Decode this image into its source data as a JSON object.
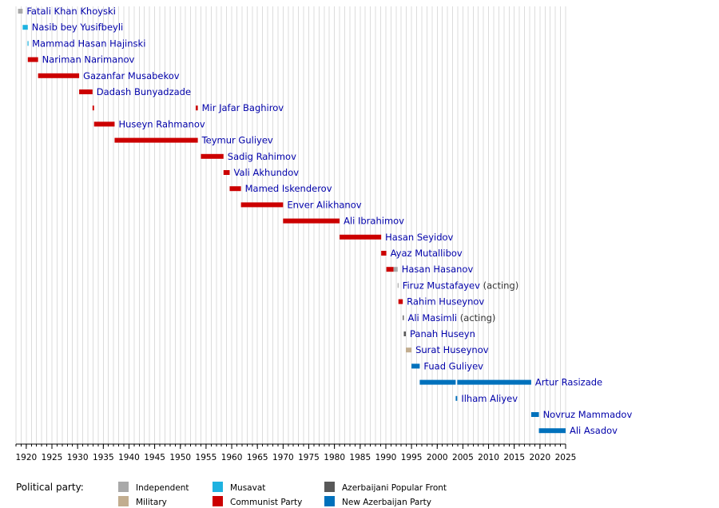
{
  "chart_data": {
    "type": "timeline",
    "title": "",
    "xlim": [
      1918,
      2025
    ],
    "x_ticks": [
      1920,
      1925,
      1930,
      1935,
      1940,
      1945,
      1950,
      1955,
      1960,
      1965,
      1970,
      1975,
      1980,
      1985,
      1990,
      1995,
      2000,
      2005,
      2010,
      2015,
      2020,
      2025
    ],
    "grid": "vertical lines every year",
    "party_colors": {
      "Independent": "#a9a9a9",
      "Musavat": "#1eb2e0",
      "Azerbaijani Popular Front": "#595959",
      "Military": "#c2ad8f",
      "Communist Party": "#cc0000",
      "New Azerbaijan Party": "#0071bc"
    },
    "rows": [
      {
        "name": "Fatali Khan Khoyski",
        "suffix": "",
        "terms": [
          {
            "start": 1918.4,
            "end": 1919.3,
            "party": "Independent"
          }
        ]
      },
      {
        "name": "Nasib bey Yusifbeyli",
        "suffix": "",
        "terms": [
          {
            "start": 1919.3,
            "end": 1920.3,
            "party": "Musavat"
          }
        ]
      },
      {
        "name": "Mammad Hasan Hajinski",
        "suffix": "",
        "terms": [
          {
            "start": 1920.25,
            "end": 1920.35,
            "party": "Musavat"
          }
        ]
      },
      {
        "name": "Nariman Narimanov",
        "suffix": "",
        "terms": [
          {
            "start": 1920.3,
            "end": 1922.3,
            "party": "Communist Party"
          }
        ]
      },
      {
        "name": "Gazanfar Musabekov",
        "suffix": "",
        "terms": [
          {
            "start": 1922.3,
            "end": 1930.3,
            "party": "Communist Party"
          }
        ]
      },
      {
        "name": "Dadash Bunyadzade",
        "suffix": "",
        "terms": [
          {
            "start": 1930.3,
            "end": 1932.9,
            "party": "Communist Party"
          }
        ]
      },
      {
        "name": "Mir Jafar Baghirov",
        "suffix": "",
        "terms": [
          {
            "start": 1932.9,
            "end": 1933.2,
            "party": "Communist Party"
          },
          {
            "start": 1953.0,
            "end": 1953.4,
            "party": "Communist Party"
          }
        ]
      },
      {
        "name": "Huseyn Rahmanov",
        "suffix": "",
        "terms": [
          {
            "start": 1933.2,
            "end": 1937.2,
            "party": "Communist Party"
          }
        ]
      },
      {
        "name": "Teymur Guliyev",
        "suffix": "",
        "terms": [
          {
            "start": 1937.2,
            "end": 1953.4,
            "party": "Communist Party"
          }
        ]
      },
      {
        "name": "Sadig Rahimov",
        "suffix": "",
        "terms": [
          {
            "start": 1954.0,
            "end": 1958.4,
            "party": "Communist Party"
          }
        ]
      },
      {
        "name": "Vali Akhundov",
        "suffix": "",
        "terms": [
          {
            "start": 1958.4,
            "end": 1959.6,
            "party": "Communist Party"
          }
        ]
      },
      {
        "name": "Mamed Iskenderov",
        "suffix": "",
        "terms": [
          {
            "start": 1959.6,
            "end": 1961.8,
            "party": "Communist Party"
          }
        ]
      },
      {
        "name": "Enver Alikhanov",
        "suffix": "",
        "terms": [
          {
            "start": 1961.8,
            "end": 1970.0,
            "party": "Communist Party"
          }
        ]
      },
      {
        "name": "Ali Ibrahimov",
        "suffix": "",
        "terms": [
          {
            "start": 1970.0,
            "end": 1981.0,
            "party": "Communist Party"
          }
        ]
      },
      {
        "name": "Hasan Seyidov",
        "suffix": "",
        "terms": [
          {
            "start": 1981.0,
            "end": 1989.1,
            "party": "Communist Party"
          }
        ]
      },
      {
        "name": "Ayaz Mutallibov",
        "suffix": "",
        "terms": [
          {
            "start": 1989.1,
            "end": 1990.1,
            "party": "Communist Party"
          }
        ]
      },
      {
        "name": "Hasan Hasanov",
        "suffix": "",
        "terms": [
          {
            "start": 1990.1,
            "end": 1991.5,
            "party": "Communist Party"
          },
          {
            "start": 1991.5,
            "end": 1992.3,
            "party": "Independent"
          }
        ]
      },
      {
        "name": "Firuz Mustafayev",
        "suffix": "(acting)",
        "terms": [
          {
            "start": 1992.3,
            "end": 1992.45,
            "party": "Independent"
          }
        ]
      },
      {
        "name": "Rahim Huseynov",
        "suffix": "",
        "terms": [
          {
            "start": 1992.45,
            "end": 1993.3,
            "party": "Communist Party"
          }
        ]
      },
      {
        "name": "Ali Masimli",
        "suffix": "(acting)",
        "terms": [
          {
            "start": 1993.3,
            "end": 1993.5,
            "party": "Azerbaijani Popular Front"
          }
        ]
      },
      {
        "name": "Panah Huseyn",
        "suffix": "",
        "terms": [
          {
            "start": 1993.5,
            "end": 1993.9,
            "party": "Azerbaijani Popular Front"
          }
        ]
      },
      {
        "name": "Surat Huseynov",
        "suffix": "",
        "terms": [
          {
            "start": 1993.9,
            "end": 1995.0,
            "party": "Military"
          }
        ]
      },
      {
        "name": "Fuad Guliyev",
        "suffix": "",
        "terms": [
          {
            "start": 1995.0,
            "end": 1996.6,
            "party": "New Azerbaijan Party"
          }
        ]
      },
      {
        "name": "Artur Rasizade",
        "suffix": "",
        "terms": [
          {
            "start": 1996.6,
            "end": 2003.6,
            "party": "New Azerbaijan Party"
          },
          {
            "start": 2003.9,
            "end": 2018.3,
            "party": "New Azerbaijan Party"
          }
        ]
      },
      {
        "name": "Ilham Aliyev",
        "suffix": "",
        "terms": [
          {
            "start": 2003.6,
            "end": 2003.9,
            "party": "New Azerbaijan Party"
          }
        ]
      },
      {
        "name": "Novruz Mammadov",
        "suffix": "",
        "terms": [
          {
            "start": 2018.3,
            "end": 2019.8,
            "party": "New Azerbaijan Party"
          }
        ]
      },
      {
        "name": "Ali Asadov",
        "suffix": "",
        "terms": [
          {
            "start": 2019.8,
            "end": 2025.0,
            "party": "New Azerbaijan Party"
          }
        ]
      }
    ]
  },
  "legend": {
    "title": "Political party:",
    "items": [
      {
        "label": "Independent",
        "color": "#a9a9a9"
      },
      {
        "label": "Military",
        "color": "#c2ad8f"
      },
      {
        "label": "Musavat",
        "color": "#1eb2e0"
      },
      {
        "label": "Communist Party",
        "color": "#cc0000"
      },
      {
        "label": "Azerbaijani Popular Front",
        "color": "#595959"
      },
      {
        "label": "New Azerbaijan Party",
        "color": "#0071bc"
      }
    ]
  },
  "colors": {
    "name_link": "#0000aa",
    "suffix_text": "#333333",
    "grid": "#dcdcdc",
    "axis": "#000000"
  }
}
